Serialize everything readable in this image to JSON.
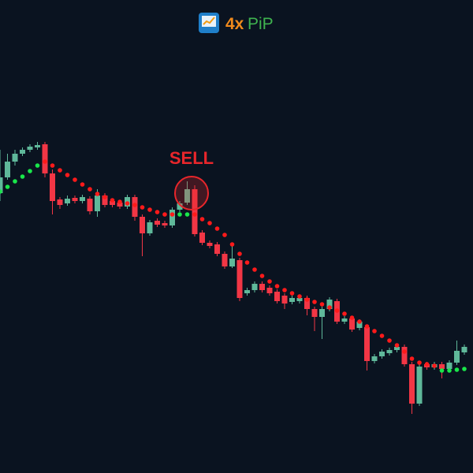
{
  "chart_data": {
    "type": "candlestick",
    "logo_text": [
      "4x",
      "PiP"
    ],
    "annotation": "SELL",
    "ylim": [
      0,
      600
    ],
    "up_color": "#5fb89a",
    "down_color": "#f23645",
    "open": [
      355,
      375,
      395,
      405,
      410,
      413,
      417,
      380,
      347,
      342,
      349,
      345,
      348,
      332,
      352,
      345,
      343,
      338,
      350,
      325,
      304,
      320,
      317,
      314,
      334,
      343,
      360,
      305,
      292,
      290,
      278,
      262,
      270,
      228,
      232,
      240,
      235,
      230,
      225,
      217,
      218,
      222,
      208,
      198,
      208,
      218,
      192,
      196,
      184,
      185,
      142,
      148,
      152,
      156,
      160,
      138,
      88,
      138,
      134,
      138,
      132,
      140,
      153
    ],
    "high": [
      410,
      405,
      410,
      413,
      417,
      420,
      420,
      385,
      350,
      352,
      352,
      353,
      351,
      360,
      355,
      348,
      346,
      353,
      353,
      328,
      321,
      323,
      320,
      337,
      345,
      370,
      365,
      308,
      295,
      293,
      281,
      290,
      273,
      235,
      243,
      243,
      238,
      233,
      228,
      225,
      225,
      225,
      211,
      211,
      223,
      221,
      199,
      199,
      195,
      188,
      151,
      157,
      159,
      163,
      163,
      141,
      138,
      141,
      141,
      141,
      143,
      168,
      163
    ],
    "low": [
      345,
      372,
      390,
      402,
      407,
      410,
      375,
      328,
      335,
      339,
      342,
      342,
      328,
      325,
      337,
      337,
      335,
      335,
      320,
      275,
      301,
      312,
      311,
      311,
      331,
      340,
      300,
      289,
      285,
      275,
      259,
      260,
      218,
      225,
      229,
      229,
      225,
      215,
      208,
      214,
      215,
      200,
      180,
      170,
      205,
      189,
      189,
      179,
      181,
      130,
      139,
      145,
      149,
      153,
      135,
      75,
      85,
      131,
      131,
      120,
      129,
      137,
      150
    ],
    "close": [
      375,
      395,
      405,
      410,
      414,
      416,
      380,
      345,
      340,
      348,
      345,
      350,
      332,
      352,
      340,
      340,
      338,
      350,
      325,
      304,
      318,
      315,
      314,
      334,
      342,
      360,
      303,
      292,
      288,
      278,
      262,
      272,
      222,
      232,
      240,
      232,
      228,
      218,
      215,
      222,
      222,
      208,
      198,
      208,
      220,
      192,
      196,
      182,
      192,
      142,
      148,
      154,
      156,
      160,
      138,
      88,
      135,
      134,
      138,
      132,
      140,
      155,
      160
    ],
    "sar_values": [
      357,
      363,
      370,
      376,
      383,
      390,
      395,
      390,
      384,
      378,
      372,
      366,
      360,
      354,
      350,
      346,
      344,
      342,
      340,
      337,
      334,
      331,
      328,
      328,
      328,
      328,
      328,
      322,
      317,
      310,
      302,
      290,
      278,
      267,
      258,
      250,
      243,
      237,
      232,
      228,
      224,
      220,
      217,
      214,
      210,
      206,
      202,
      197,
      192,
      186,
      180,
      174,
      168,
      162,
      154,
      145,
      140,
      138,
      136,
      130,
      130,
      131,
      132
    ],
    "sar_colors": [
      "#19e64a",
      "#19e64a",
      "#19e64a",
      "#19e64a",
      "#19e64a",
      "#19e64a",
      "#ff1a1a",
      "#ff1a1a",
      "#ff1a1a",
      "#ff1a1a",
      "#ff1a1a",
      "#ff1a1a",
      "#ff1a1a",
      "#ff1a1a",
      "#ff1a1a",
      "#ff1a1a",
      "#ff1a1a",
      "#ff1a1a",
      "#ff1a1a",
      "#ff1a1a",
      "#ff1a1a",
      "#ff1a1a",
      "#ff1a1a",
      "#ff1a1a",
      "#19e64a",
      "#19e64a",
      "#ff1a1a",
      "#ff1a1a",
      "#ff1a1a",
      "#ff1a1a",
      "#ff1a1a",
      "#ff1a1a",
      "#ff1a1a",
      "#ff1a1a",
      "#ff1a1a",
      "#ff1a1a",
      "#ff1a1a",
      "#ff1a1a",
      "#ff1a1a",
      "#ff1a1a",
      "#ff1a1a",
      "#ff1a1a",
      "#ff1a1a",
      "#ff1a1a",
      "#ff1a1a",
      "#ff1a1a",
      "#ff1a1a",
      "#ff1a1a",
      "#ff1a1a",
      "#ff1a1a",
      "#ff1a1a",
      "#ff1a1a",
      "#ff1a1a",
      "#ff1a1a",
      "#ff1a1a",
      "#ff1a1a",
      "#ff1a1a",
      "#ff1a1a",
      "#ff1a1a",
      "#19e64a",
      "#19e64a",
      "#19e64a",
      "#19e64a"
    ]
  }
}
